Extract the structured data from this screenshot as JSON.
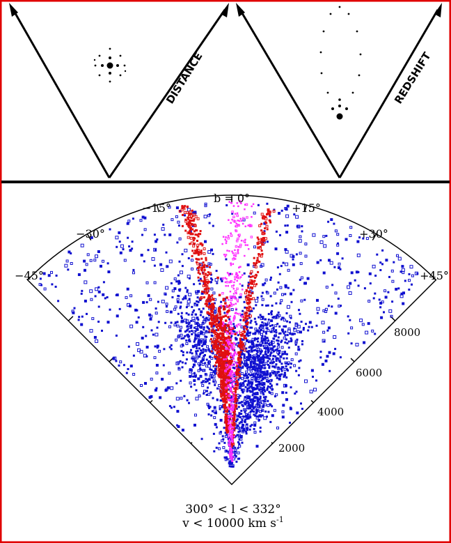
{
  "top_panels": {
    "left_label": "DISTANCE",
    "right_label": "REDSHIFT"
  },
  "wedge": {
    "center_label": "b = 0°",
    "angle_labels": [
      "−45°",
      "−30°",
      "−15°",
      "+15°",
      "+30°",
      "+45°"
    ],
    "velocity_labels": [
      "2000",
      "4000",
      "6000",
      "8000"
    ],
    "caption_line1": "300° < l < 332°",
    "caption_line2_main": "v < 10000 km s",
    "caption_line2_exp": "-1"
  },
  "chart_data": {
    "type": "scatter",
    "projection": "wedge",
    "x_axis": {
      "quantity": "galactic latitude b",
      "unit": "degree",
      "range": [
        -45,
        45
      ],
      "ticks": [
        -45,
        -30,
        -15,
        0,
        15,
        30,
        45
      ]
    },
    "y_axis": {
      "quantity": "velocity v",
      "unit": "km s^-1",
      "range": [
        0,
        10000
      ],
      "ticks": [
        2000,
        4000,
        6000,
        8000
      ]
    },
    "colors": {
      "field": "#1010d0",
      "red_groups": "#e01010",
      "magenta_groups": "#ff30ff"
    },
    "legend": "none"
  }
}
